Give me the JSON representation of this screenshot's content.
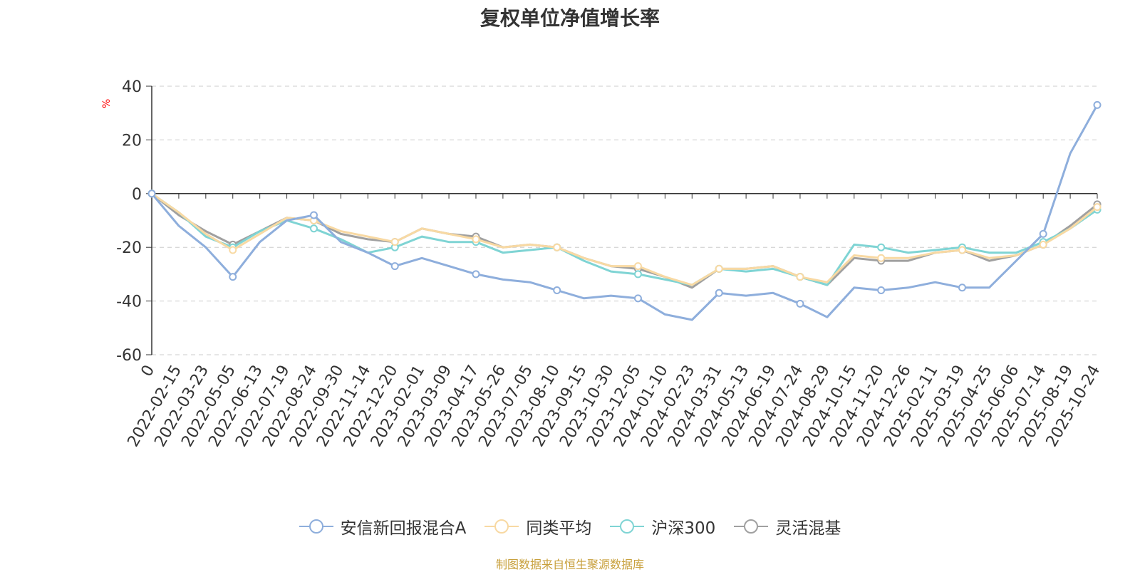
{
  "chart_data": {
    "type": "line",
    "title": "复权单位净值增长率",
    "ylabel": "%",
    "xlabel": "",
    "ylim": [
      -60,
      40
    ],
    "yticks": [
      40,
      20,
      0,
      -20,
      -40,
      -60
    ],
    "grid": true,
    "legend_position": "bottom",
    "categories": [
      "0",
      "2022-02-15",
      "2022-03-23",
      "2022-05-05",
      "2022-06-13",
      "2022-07-19",
      "2022-08-24",
      "2022-09-30",
      "2022-11-14",
      "2022-12-20",
      "2023-02-01",
      "2023-03-09",
      "2023-04-17",
      "2023-05-26",
      "2023-07-05",
      "2023-08-10",
      "2023-09-15",
      "2023-10-30",
      "2023-12-05",
      "2024-01-10",
      "2024-02-23",
      "2024-03-31",
      "2024-05-13",
      "2024-06-19",
      "2024-07-24",
      "2024-08-29",
      "2024-10-15",
      "2024-11-20",
      "2024-12-26",
      "2025-02-11",
      "2025-03-19",
      "2025-04-25",
      "2025-06-06",
      "2025-07-14",
      "2025-08-19",
      "2025-10-24"
    ],
    "series": [
      {
        "name": "安信新回报混合A",
        "color": "#8eaedc",
        "values": [
          0,
          -12,
          -20,
          -31,
          -18,
          -10,
          -8,
          -18,
          -22,
          -27,
          -24,
          -27,
          -30,
          -32,
          -33,
          -36,
          -39,
          -38,
          -39,
          -45,
          -47,
          -37,
          -38,
          -37,
          -41,
          -46,
          -35,
          -36,
          -35,
          -33,
          -35,
          -35,
          -25,
          -15,
          15,
          33
        ]
      },
      {
        "name": "同类平均",
        "color": "#f8d9a3",
        "values": [
          0,
          -7,
          -15,
          -21,
          -15,
          -9,
          -10,
          -14,
          -16,
          -18,
          -13,
          -15,
          -17,
          -20,
          -19,
          -20,
          -24,
          -27,
          -27,
          -31,
          -34,
          -28,
          -28,
          -27,
          -31,
          -33,
          -23,
          -24,
          -24,
          -22,
          -21,
          -24,
          -23,
          -19,
          -13,
          -5
        ]
      },
      {
        "name": "沪深300",
        "color": "#7fd4d4",
        "values": [
          0,
          -7,
          -16,
          -20,
          -14,
          -10,
          -13,
          -17,
          -22,
          -20,
          -16,
          -18,
          -18,
          -22,
          -21,
          -20,
          -25,
          -29,
          -30,
          -32,
          -34,
          -28,
          -29,
          -28,
          -31,
          -34,
          -19,
          -20,
          -22,
          -21,
          -20,
          -22,
          -22,
          -18,
          -13,
          -6
        ]
      },
      {
        "name": "灵活混基",
        "color": "#a0a0a0",
        "values": [
          0,
          -8,
          -14,
          -19,
          -14,
          -9,
          -10,
          -15,
          -17,
          -18,
          -13,
          -15,
          -16,
          -20,
          -19,
          -20,
          -24,
          -27,
          -28,
          -31,
          -35,
          -28,
          -28,
          -27,
          -31,
          -34,
          -24,
          -25,
          -25,
          -22,
          -21,
          -25,
          -23,
          -19,
          -12,
          -4
        ]
      }
    ]
  },
  "source_note": "制图数据来自恒生聚源数据库"
}
